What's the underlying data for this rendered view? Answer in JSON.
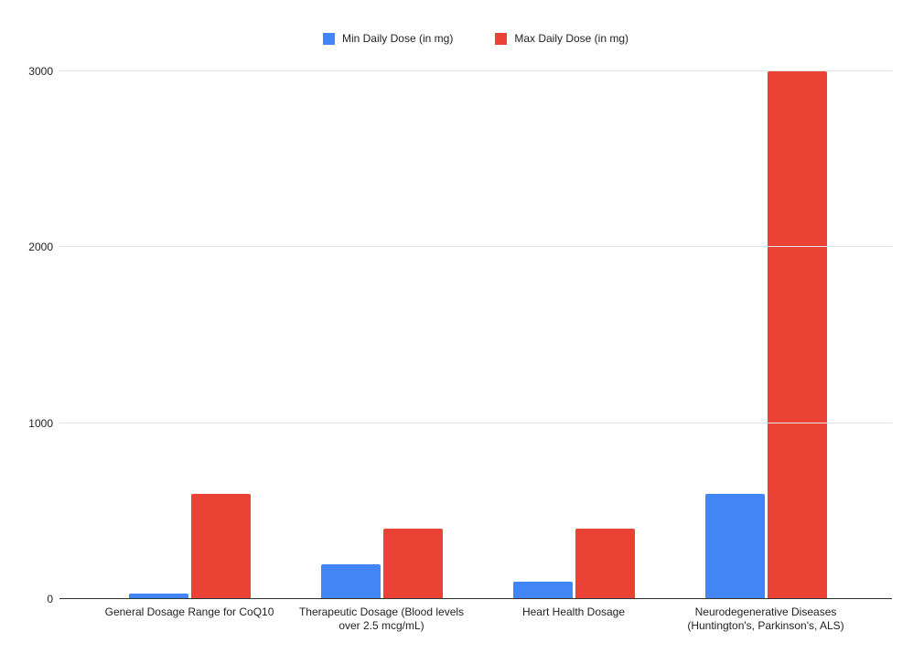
{
  "chart_data": {
    "type": "bar",
    "title": "",
    "xlabel": "",
    "ylabel": "",
    "categories": [
      "General Dosage Range for CoQ10",
      "Therapeutic Dosage (Blood levels over 2.5 mcg/mL)",
      "Heart Health Dosage",
      "Neurodegenerative Diseases (Huntington's, Parkinson's, ALS)"
    ],
    "series": [
      {
        "name": "Min Daily Dose (in mg)",
        "color": "#4285F4",
        "values": [
          30,
          200,
          100,
          600
        ]
      },
      {
        "name": "Max Daily Dose (in mg)",
        "color": "#EA4335",
        "values": [
          600,
          400,
          400,
          3000
        ]
      }
    ],
    "ylim": [
      0,
      3000
    ],
    "yticks": [
      0,
      1000,
      2000,
      3000
    ],
    "grid": true,
    "legend_position": "top",
    "background_color": "#ffffff",
    "gridline_color": "#e3e3e3",
    "baseline_color": "#333333",
    "text_color": "#1f1f1f"
  }
}
